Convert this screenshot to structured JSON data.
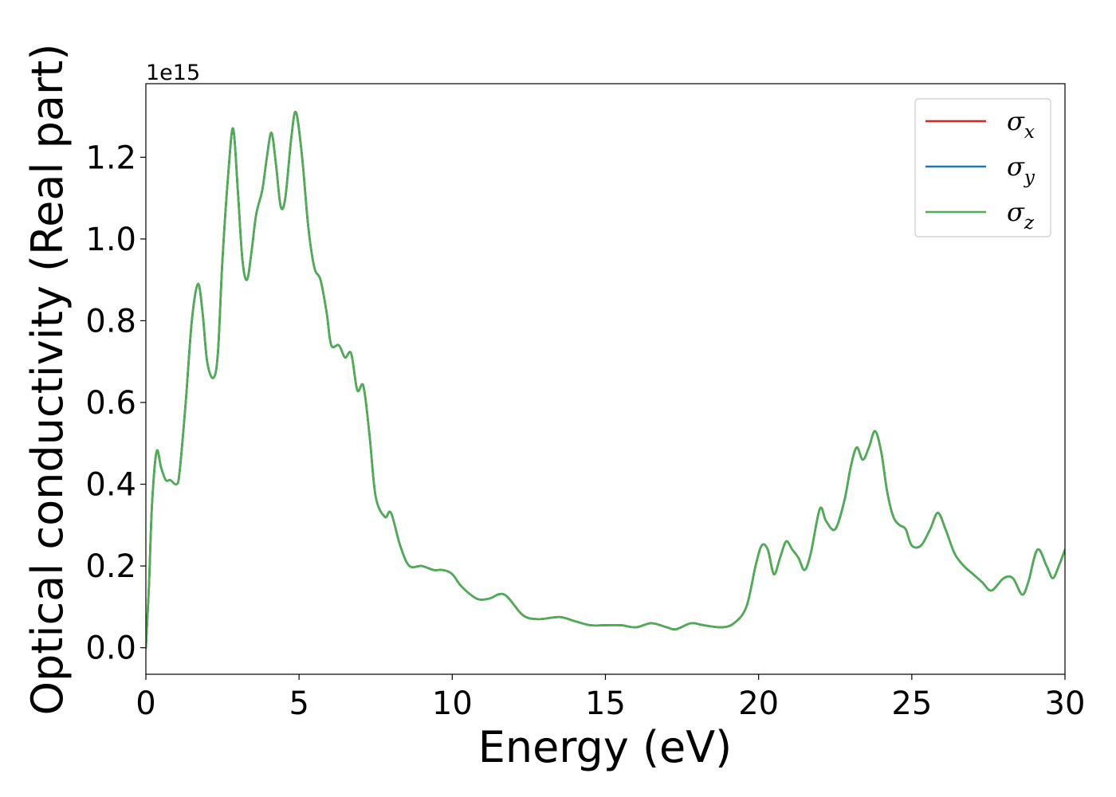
{
  "chart_data": {
    "type": "line",
    "xlabel": "Energy (eV)",
    "ylabel": "Optical conductivity (Real part)",
    "y_offset_label": "1e15",
    "y_scale": 1000000000000000.0,
    "xlim": [
      0,
      30
    ],
    "ylim": [
      -0.065,
      1.38
    ],
    "x_ticks": [
      0,
      5,
      10,
      15,
      20,
      25,
      30
    ],
    "x_tick_labels": [
      "0",
      "5",
      "10",
      "15",
      "20",
      "25",
      "30"
    ],
    "y_ticks": [
      0.0,
      0.2,
      0.4,
      0.6,
      0.8,
      1.0,
      1.2
    ],
    "y_tick_labels": [
      "0.0",
      "0.2",
      "0.4",
      "0.6",
      "0.8",
      "1.0",
      "1.2"
    ],
    "grid": false,
    "legend_position": "top-right",
    "series": [
      {
        "name": "σx",
        "symbol": "σ",
        "subscript": "x",
        "color": "#d62728"
      },
      {
        "name": "σy",
        "symbol": "σ",
        "subscript": "y",
        "color": "#1f77b4"
      },
      {
        "name": "σz",
        "symbol": "σ",
        "subscript": "z",
        "color": "#4caf50"
      }
    ],
    "x": [
      0,
      0.1,
      0.2,
      0.35,
      0.5,
      0.65,
      0.8,
      1.0,
      1.1,
      1.3,
      1.5,
      1.7,
      1.85,
      2.0,
      2.2,
      2.35,
      2.5,
      2.7,
      2.85,
      3.0,
      3.15,
      3.3,
      3.45,
      3.6,
      3.8,
      3.95,
      4.1,
      4.25,
      4.4,
      4.55,
      4.75,
      4.9,
      5.1,
      5.3,
      5.5,
      5.7,
      5.9,
      6.05,
      6.3,
      6.5,
      6.7,
      6.9,
      7.1,
      7.3,
      7.5,
      7.8,
      8.0,
      8.3,
      8.6,
      9.0,
      9.4,
      9.7,
      10.0,
      10.3,
      10.8,
      11.2,
      11.7,
      12.3,
      12.8,
      13.5,
      14.0,
      14.5,
      15.0,
      15.5,
      16.0,
      16.5,
      17.0,
      17.3,
      17.8,
      18.2,
      18.8,
      19.2,
      19.6,
      19.9,
      20.1,
      20.3,
      20.5,
      20.7,
      20.9,
      21.1,
      21.3,
      21.5,
      21.7,
      22.0,
      22.2,
      22.5,
      22.8,
      23.0,
      23.2,
      23.4,
      23.6,
      23.8,
      24.0,
      24.2,
      24.4,
      24.6,
      24.8,
      25.0,
      25.3,
      25.6,
      25.85,
      26.1,
      26.4,
      26.7,
      27.0,
      27.3,
      27.6,
      28.0,
      28.3,
      28.6,
      28.8,
      29.1,
      29.4,
      29.6,
      29.8,
      30.0
    ],
    "y": [
      0.0,
      0.15,
      0.35,
      0.48,
      0.44,
      0.41,
      0.41,
      0.4,
      0.43,
      0.6,
      0.8,
      0.89,
      0.82,
      0.7,
      0.66,
      0.72,
      0.95,
      1.17,
      1.27,
      1.12,
      0.95,
      0.9,
      0.97,
      1.06,
      1.12,
      1.2,
      1.26,
      1.18,
      1.08,
      1.1,
      1.25,
      1.31,
      1.2,
      1.03,
      0.93,
      0.9,
      0.82,
      0.74,
      0.74,
      0.71,
      0.72,
      0.63,
      0.64,
      0.52,
      0.37,
      0.32,
      0.33,
      0.25,
      0.2,
      0.2,
      0.19,
      0.19,
      0.18,
      0.15,
      0.12,
      0.12,
      0.13,
      0.08,
      0.07,
      0.075,
      0.065,
      0.055,
      0.055,
      0.055,
      0.05,
      0.06,
      0.05,
      0.045,
      0.06,
      0.055,
      0.05,
      0.06,
      0.1,
      0.2,
      0.25,
      0.24,
      0.18,
      0.22,
      0.26,
      0.24,
      0.22,
      0.19,
      0.23,
      0.34,
      0.31,
      0.29,
      0.36,
      0.44,
      0.49,
      0.46,
      0.49,
      0.53,
      0.48,
      0.38,
      0.32,
      0.3,
      0.29,
      0.25,
      0.25,
      0.29,
      0.33,
      0.29,
      0.23,
      0.2,
      0.18,
      0.16,
      0.14,
      0.17,
      0.17,
      0.13,
      0.16,
      0.24,
      0.2,
      0.17,
      0.2,
      0.24
    ]
  }
}
